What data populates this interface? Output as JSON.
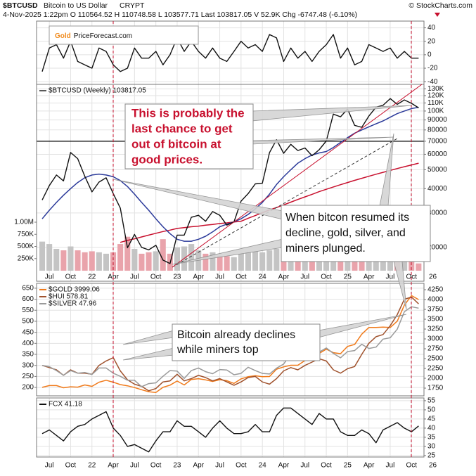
{
  "header": {
    "symbol": "$BTCUSD",
    "name": "Bitcoin to US Dollar",
    "exchange": "CRYPT",
    "source": "© StockCharts.com",
    "quote": "4-Nov-2025 1:22pm  O 110564.52  H 110748.58  L 103577.71  Last 103817.05  V 52.9K  Chg -6747.48 (-6.10%)"
  },
  "logo": {
    "gold": "Gold",
    "rest": "PriceForecast.com"
  },
  "annotations": [
    {
      "lines": [
        "This is probably the",
        "last chance to get",
        "out of bitcoin at",
        "good prices."
      ]
    },
    {
      "lines": [
        "When bitcon resumed its",
        "decline, gold, silver, and",
        "miners plunged."
      ]
    },
    {
      "lines": [
        "Bitcoin already declines",
        "while miners top"
      ]
    }
  ],
  "chart_data": [
    {
      "type": "line",
      "ylim": [
        -44,
        50
      ],
      "yticks": [
        40,
        20,
        0,
        -20,
        -40
      ],
      "grid": true,
      "series": [
        {
          "color": "#111111",
          "values": [
            -25,
            10,
            15,
            -5,
            20,
            -10,
            -15,
            -20,
            10,
            5,
            -15,
            -25,
            -20,
            10,
            -5,
            -5,
            5,
            -15,
            0,
            25,
            5,
            20,
            5,
            -5,
            10,
            -5,
            -10,
            5,
            20,
            10,
            15,
            5,
            30,
            25,
            -10,
            10,
            -5,
            5,
            -10,
            5,
            15,
            30,
            -5,
            10,
            -15,
            -10,
            15,
            10,
            5,
            10,
            -5,
            5,
            -5,
            -5,
            null,
            null
          ]
        }
      ]
    },
    {
      "type": "line",
      "title": "$BTCUSD (Weekly) 103817.05",
      "log_scale": true,
      "grid": true,
      "categories": [
        null,
        "Jul",
        null,
        null,
        "Oct",
        null,
        null,
        "22",
        null,
        null,
        "Apr",
        null,
        null,
        "Jul",
        null,
        null,
        "Oct",
        null,
        null,
        "23",
        null,
        null,
        "Apr",
        null,
        null,
        "Jul",
        null,
        null,
        "Oct",
        null,
        null,
        "24",
        null,
        null,
        "Apr",
        null,
        null,
        "Jul",
        null,
        null,
        "Oct",
        null,
        null,
        "25",
        null,
        null,
        "Apr",
        null,
        null,
        "Jul",
        null,
        null,
        "Oct",
        null,
        null,
        "26"
      ],
      "ylim": [
        13400,
        137000
      ],
      "yticks": [
        {
          "value": 130000,
          "label": "130K"
        },
        {
          "value": 120000,
          "label": "120K"
        },
        {
          "value": 110000,
          "label": "110K"
        },
        {
          "value": 100000,
          "label": "100K"
        },
        90000,
        80000,
        70000,
        60000,
        50000,
        40000,
        30000,
        20000
      ],
      "y2lim": [
        -217000,
        3840000
      ],
      "y2ticks": [
        {
          "value": 1000000,
          "label": "1.00M"
        },
        {
          "value": 750000,
          "label": "750K"
        },
        {
          "value": 500000,
          "label": "500K"
        },
        {
          "value": 250000,
          "label": "250K"
        }
      ],
      "hline": 70000,
      "series": [
        {
          "type": "bar",
          "axis": "y2",
          "color": "#c4c4c4",
          "down_color": "#e9a3ab",
          "values": [
            600000,
            550000,
            450000,
            420000,
            500000,
            420000,
            380000,
            400000,
            380000,
            350000,
            380000,
            550000,
            700000,
            450000,
            350000,
            380000,
            400000,
            650000,
            350000,
            480000,
            500000,
            550000,
            420000,
            350000,
            380000,
            300000,
            300000,
            280000,
            350000,
            380000,
            400000,
            380000,
            420000,
            450000,
            350000,
            300000,
            280000,
            300000,
            280000,
            250000,
            280000,
            380000,
            300000,
            280000,
            300000,
            320000,
            260000,
            250000,
            220000,
            230000,
            220000,
            200000,
            220000,
            150000,
            null,
            null
          ]
        },
        {
          "color": "#c8102e",
          "values": [
            null,
            null,
            null,
            null,
            null,
            null,
            null,
            null,
            null,
            null,
            null,
            21200,
            21700,
            22100,
            22600,
            23100,
            23600,
            24100,
            24500,
            25000,
            25250,
            25500,
            25700,
            26000,
            26200,
            26500,
            26700,
            26950,
            27200,
            28200,
            29100,
            30100,
            31100,
            32000,
            33000,
            34100,
            35200,
            36300,
            37400,
            38600,
            39700,
            40800,
            41900,
            43000,
            44100,
            45200,
            46300,
            47400,
            48500,
            49600,
            50700,
            51800,
            52900,
            54000,
            null,
            null
          ]
        },
        {
          "color": "#2b3a9a",
          "values": [
            28000,
            31000,
            34000,
            37000,
            40000,
            43000,
            45500,
            47000,
            47500,
            47000,
            46000,
            44000,
            41000,
            37500,
            34000,
            31000,
            28000,
            25500,
            23500,
            22000,
            21500,
            21500,
            22000,
            22800,
            24000,
            25500,
            26300,
            27000,
            28000,
            29500,
            31500,
            34000,
            37500,
            42000,
            46000,
            50000,
            54000,
            57000,
            59500,
            61000,
            62000,
            65000,
            69000,
            73000,
            77000,
            80000,
            83000,
            86000,
            89000,
            93000,
            97000,
            100000,
            103000,
            104500,
            null,
            null
          ]
        },
        {
          "color": "#111111",
          "values": [
            35000,
            41500,
            47000,
            43800,
            61300,
            57000,
            46300,
            38500,
            43200,
            45500,
            37700,
            31800,
            19900,
            23300,
            20000,
            19400,
            20500,
            17200,
            16500,
            23100,
            23100,
            28500,
            29200,
            27200,
            30500,
            29200,
            26000,
            27000,
            34500,
            37700,
            42300,
            42600,
            61200,
            71300,
            60700,
            67500,
            62700,
            64600,
            59000,
            63300,
            70200,
            96400,
            93400,
            102400,
            84400,
            82500,
            94200,
            104600,
            107100,
            115800,
            108200,
            114000,
            109500,
            103817.05,
            null,
            null
          ]
        }
      ]
    },
    {
      "type": "line",
      "grid": true,
      "ylim": [
        162,
        672
      ],
      "yticks": [
        650,
        600,
        550,
        500,
        450,
        400,
        350,
        300,
        250,
        200
      ],
      "y2lim": [
        1554,
        4411
      ],
      "y2ticks": [
        4250,
        4000,
        3750,
        3500,
        3250,
        3000,
        2750,
        2500,
        2250,
        2000,
        1750
      ],
      "y3lim": [
        14.3,
        57.5
      ],
      "series": [
        {
          "name": "$GOLD 3999.06",
          "axis": "y2",
          "color": "#f07a1a",
          "values": [
            1770,
            1815,
            1815,
            1760,
            1785,
            1775,
            1830,
            1795,
            1900,
            1950,
            1900,
            1840,
            1810,
            1765,
            1710,
            1660,
            1640,
            1770,
            1825,
            1930,
            1830,
            1970,
            1990,
            1960,
            1920,
            1965,
            1940,
            1870,
            1985,
            2040,
            2065,
            2040,
            2045,
            2230,
            2290,
            2330,
            2330,
            2450,
            2500,
            2630,
            2740,
            2650,
            2625,
            2810,
            2860,
            3120,
            3290,
            3290,
            3300,
            3290,
            3450,
            3860,
            4100,
            3999.06,
            null,
            null
          ]
        },
        {
          "name": "$HUI 578.81",
          "color": "#a0522d",
          "values": [
            300,
            290,
            280,
            255,
            280,
            265,
            265,
            260,
            300,
            320,
            335,
            275,
            235,
            215,
            205,
            185,
            195,
            225,
            230,
            260,
            230,
            240,
            255,
            245,
            230,
            240,
            225,
            210,
            225,
            245,
            250,
            225,
            215,
            240,
            275,
            290,
            280,
            300,
            315,
            330,
            320,
            280,
            265,
            285,
            295,
            350,
            400,
            430,
            440,
            480,
            530,
            600,
            610,
            578.81,
            null,
            null
          ]
        },
        {
          "name": "$SILVER 47.96",
          "axis": "y3",
          "color": "#9a9a9a",
          "values": [
            26,
            25.5,
            24,
            22.2,
            24,
            23,
            23.3,
            22.5,
            25,
            25,
            23,
            21.8,
            20.3,
            20.3,
            17.8,
            19,
            19.3,
            21.8,
            24,
            23.8,
            21,
            24,
            25,
            23.6,
            22.8,
            24.4,
            24.2,
            22.4,
            22.9,
            25.3,
            24,
            22.9,
            22.7,
            24.9,
            26.5,
            30.4,
            29.1,
            29,
            28.7,
            31.1,
            32.7,
            30.6,
            28.9,
            31.3,
            31.7,
            34.1,
            32.5,
            33,
            36.1,
            36.6,
            39.9,
            46.6,
            48.5,
            47.96,
            null,
            null
          ]
        }
      ]
    },
    {
      "type": "line",
      "grid": true,
      "categories": [
        null,
        "Jul",
        null,
        null,
        "Oct",
        null,
        null,
        "22",
        null,
        null,
        "Apr",
        null,
        null,
        "Jul",
        null,
        null,
        "Oct",
        null,
        null,
        "23",
        null,
        null,
        "Apr",
        null,
        null,
        "Jul",
        null,
        null,
        "Oct",
        null,
        null,
        "24",
        null,
        null,
        "Apr",
        null,
        null,
        "Jul",
        null,
        null,
        "Oct",
        null,
        null,
        "25",
        null,
        null,
        "Apr",
        null,
        null,
        "Jul",
        null,
        null,
        "Oct",
        null,
        null,
        "26"
      ],
      "ylim": [
        24.2,
        56.5
      ],
      "yticks": [
        55,
        50,
        45,
        40,
        35,
        30,
        25
      ],
      "series": [
        {
          "name": "FCX 41.18",
          "color": "#111111",
          "values": [
            37,
            39,
            36,
            33,
            38,
            41,
            42,
            45,
            47,
            49,
            40,
            36,
            30,
            31,
            29,
            27,
            33,
            38,
            38,
            44,
            41,
            41,
            38,
            35,
            40,
            44,
            40,
            37,
            37,
            38,
            42,
            38,
            38,
            47,
            51,
            51,
            48,
            45,
            42,
            48,
            45,
            45,
            38,
            36,
            36,
            39,
            37,
            32,
            39,
            41,
            43,
            40,
            38,
            41.18,
            null,
            null
          ]
        }
      ]
    }
  ]
}
